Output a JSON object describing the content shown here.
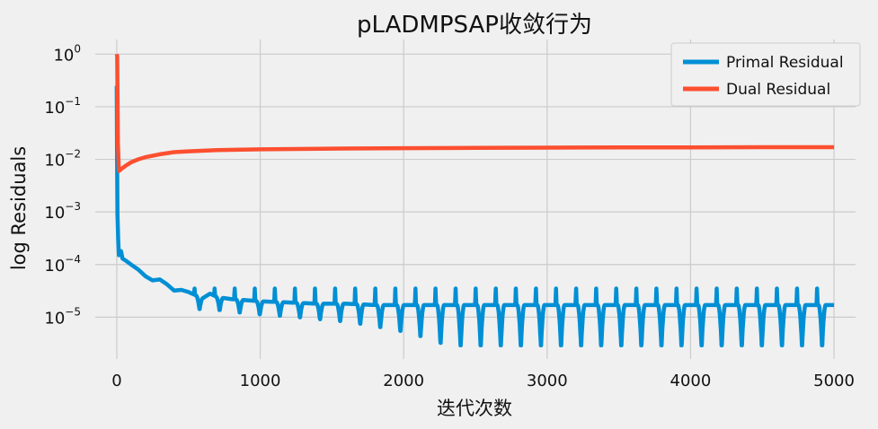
{
  "chart_data": {
    "type": "line",
    "title": "pLADMPSAP收敛行为",
    "xlabel": "迭代次数",
    "ylabel": "log  Residuals",
    "xlim": [
      -150,
      5150
    ],
    "ylim": [
      1.6e-06,
      1.9
    ],
    "y_scale": "log",
    "grid": true,
    "legend_position": "top-right",
    "x_ticks": [
      {
        "value": 0,
        "label": "0"
      },
      {
        "value": 1000,
        "label": "1000"
      },
      {
        "value": 2000,
        "label": "2000"
      },
      {
        "value": 3000,
        "label": "3000"
      },
      {
        "value": 4000,
        "label": "4000"
      },
      {
        "value": 5000,
        "label": "5000"
      }
    ],
    "y_ticks": [
      {
        "value": 1,
        "base": "10",
        "exp": "0"
      },
      {
        "value": 0.1,
        "base": "10",
        "exp": "−1"
      },
      {
        "value": 0.01,
        "base": "10",
        "exp": "−2"
      },
      {
        "value": 0.001,
        "base": "10",
        "exp": "−3"
      },
      {
        "value": 0.0001,
        "base": "10",
        "exp": "−4"
      },
      {
        "value": 1e-05,
        "base": "10",
        "exp": "−5"
      }
    ],
    "series": [
      {
        "name": "Primal Residual",
        "color": "#008fd5",
        "x": [
          0,
          2,
          5,
          10,
          15,
          20,
          30,
          40,
          60,
          100,
          150,
          200,
          250,
          300,
          350,
          400,
          450,
          500,
          550,
          600,
          650,
          700,
          800,
          900,
          1000,
          1200,
          1400,
          1600,
          1800,
          2000,
          2200,
          2400,
          2600,
          2800,
          3000,
          3200,
          3400,
          3600,
          3800,
          4000,
          4200,
          4400,
          4600,
          4800,
          5000
        ],
        "y": [
          0.25,
          0.01,
          0.0009,
          0.0003,
          0.00015,
          0.00016,
          0.00018,
          0.00013,
          0.00012,
          0.0001,
          8e-05,
          6e-05,
          5e-05,
          5.2e-05,
          4.2e-05,
          3.2e-05,
          3.3e-05,
          3e-05,
          2.6e-05,
          2.3e-05,
          2.8e-05,
          2.4e-05,
          2.2e-05,
          2.1e-05,
          2e-05,
          1.9e-05,
          1.8e-05,
          1.8e-05,
          1.7e-05,
          1.7e-05,
          1.7e-05,
          1.7e-05,
          1.7e-05,
          1.7e-05,
          1.7e-05,
          1.7e-05,
          1.7e-05,
          1.7e-05,
          1.7e-05,
          1.7e-05,
          1.7e-05,
          1.7e-05,
          1.7e-05,
          1.7e-05,
          1.7e-05
        ],
        "oscillation": {
          "period": 140,
          "min": 2.5e-06,
          "spike_max": 3.5e-05
        }
      },
      {
        "name": "Dual Residual",
        "color": "#fc4f30",
        "x": [
          0,
          3,
          8,
          15,
          30,
          60,
          100,
          150,
          200,
          300,
          400,
          500,
          700,
          1000,
          1500,
          2000,
          2500,
          3000,
          3500,
          4000,
          4500,
          5000
        ],
        "y": [
          1.0,
          0.9,
          0.02,
          0.006,
          0.0065,
          0.0075,
          0.0088,
          0.01,
          0.011,
          0.0125,
          0.0137,
          0.0142,
          0.015,
          0.0155,
          0.016,
          0.0163,
          0.0165,
          0.0167,
          0.0168,
          0.0169,
          0.017,
          0.017
        ]
      }
    ]
  }
}
